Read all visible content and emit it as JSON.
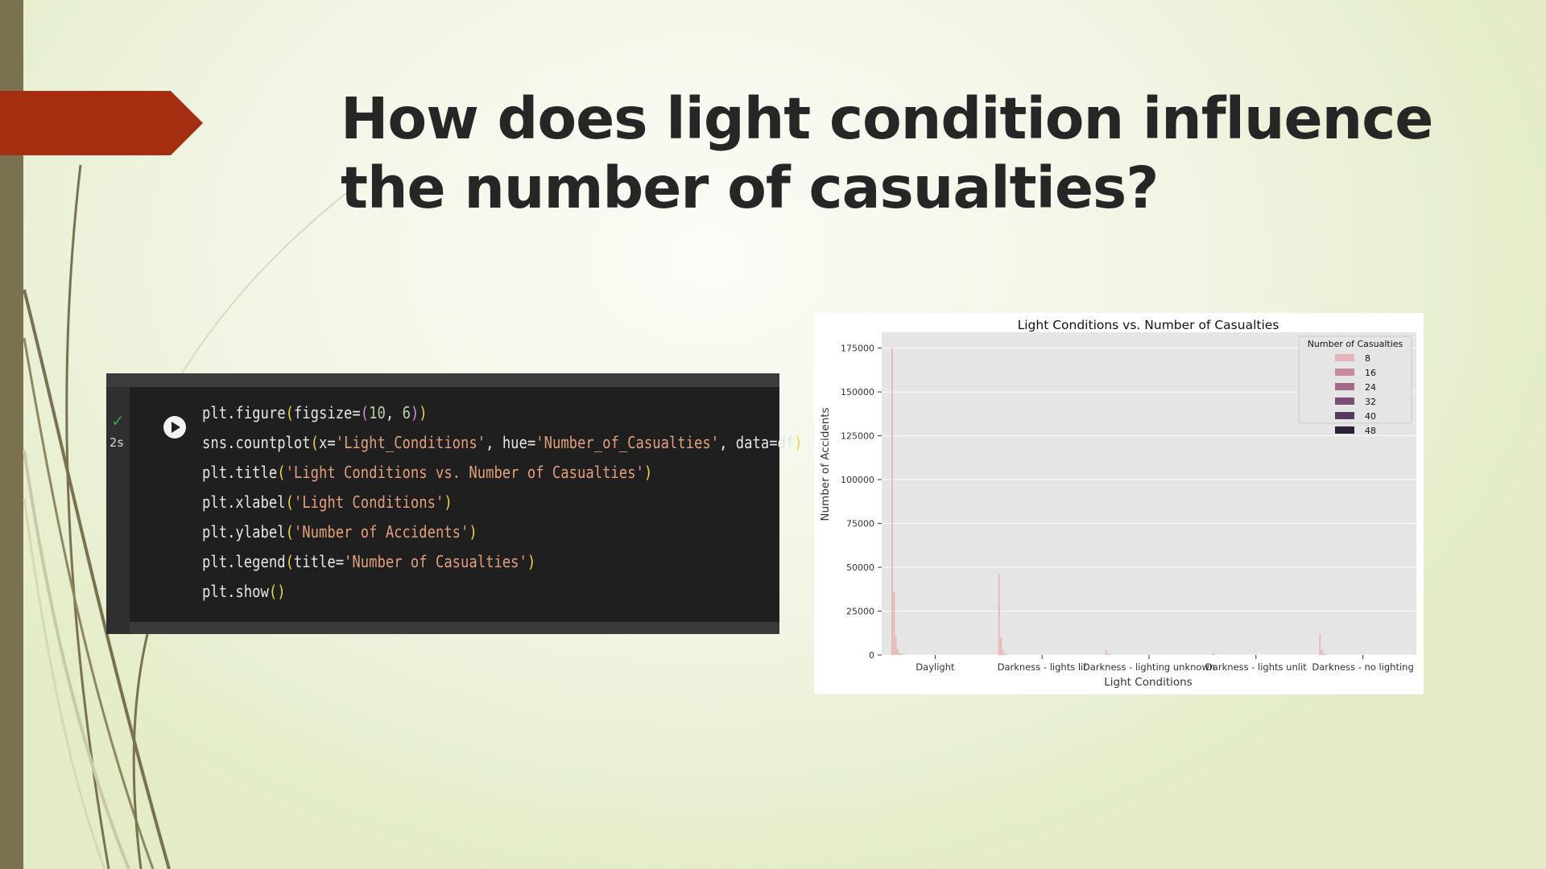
{
  "slide": {
    "title": "How does light condition influence the number of casualties?"
  },
  "code_cell": {
    "status": "✓",
    "exec_time": "2s",
    "lines": [
      "plt.figure(figsize=(10, 6))",
      "sns.countplot(x='Light_Conditions', hue='Number_of_Casualties', data=df)",
      "plt.title('Light Conditions vs. Number of Casualties')",
      "plt.xlabel('Light Conditions')",
      "plt.ylabel('Number of Accidents')",
      "plt.legend(title='Number of Casualties')",
      "plt.show()"
    ]
  },
  "colors": {
    "accent_tab": "#a52e11",
    "side_bar": "#7a7150",
    "chart_bg": "#e5e5e5"
  },
  "chart_data": {
    "type": "bar",
    "title": "Light Conditions vs. Number of Casualties",
    "xlabel": "Light Conditions",
    "ylabel": "Number of Accidents",
    "categories": [
      "Daylight",
      "Darkness - lights lit",
      "Darkness - lighting unknown",
      "Darkness - lights unlit",
      "Darkness - no lighting"
    ],
    "category_labels_shown": [
      "Daylight",
      "Darkness - lights lit",
      "Darkness - lighting unknown",
      "Darkness - lights unlit",
      "Darkness - no lighting"
    ],
    "yticks": [
      0,
      25000,
      50000,
      75000,
      100000,
      125000,
      150000,
      175000
    ],
    "ytick_labels": [
      "0",
      "25000",
      "50000",
      "75000",
      "100000",
      "125000",
      "150000",
      "175000"
    ],
    "ylim": [
      0,
      184000
    ],
    "grid": true,
    "legend": {
      "title": "Number of Casualties",
      "placement": "top-right",
      "entries": [
        "8",
        "16",
        "24",
        "32",
        "40",
        "48"
      ]
    },
    "series": [
      {
        "hue": 1,
        "values": [
          175000,
          46000,
          3000,
          1000,
          12000
        ]
      },
      {
        "hue": 2,
        "values": [
          36000,
          10000,
          800,
          300,
          3000
        ]
      },
      {
        "hue": 3,
        "values": [
          10500,
          3000,
          200,
          100,
          1000
        ]
      },
      {
        "hue": 4,
        "values": [
          3500,
          1000,
          80,
          40,
          350
        ]
      },
      {
        "hue": 5,
        "values": [
          1200,
          400,
          30,
          15,
          120
        ]
      },
      {
        "hue": 6,
        "values": [
          500,
          150,
          10,
          5,
          50
        ]
      },
      {
        "hue": 7,
        "values": [
          200,
          60,
          5,
          2,
          20
        ]
      }
    ],
    "bar_color": "#e8b8b6",
    "legend_colors": [
      "#e5b5bb",
      "#c88b9c",
      "#a46888",
      "#7a4e74",
      "#553a5e",
      "#2b2238"
    ]
  }
}
